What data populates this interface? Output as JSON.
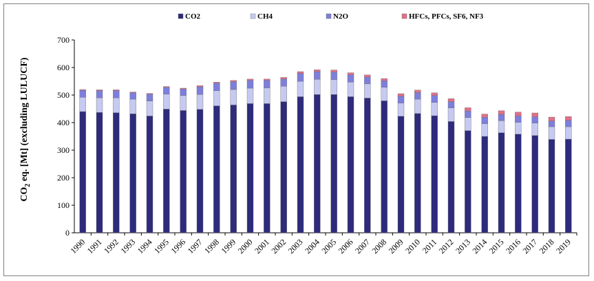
{
  "chart_data": {
    "type": "bar",
    "stacked": true,
    "title": "",
    "xlabel": "",
    "ylabel": "CO₂ eq. [Mt] (excluding LULUCF)",
    "ylabel_parts": {
      "pre": "CO",
      "sub": "2",
      "post": " eq. [Mt] (excluding LULUCF)"
    },
    "ylim": [
      0,
      700
    ],
    "yticks": [
      0,
      100,
      200,
      300,
      400,
      500,
      600,
      700
    ],
    "grid": false,
    "legend_position": "top",
    "categories": [
      "1990",
      "1991",
      "1992",
      "1993",
      "1994",
      "1995",
      "1996",
      "1997",
      "1998",
      "1999",
      "2000",
      "2001",
      "2002",
      "2003",
      "2004",
      "2005",
      "2006",
      "2007",
      "2008",
      "2009",
      "2010",
      "2011",
      "2012",
      "2013",
      "2014",
      "2015",
      "2016",
      "2017",
      "2018",
      "2019"
    ],
    "series": [
      {
        "name": "CO2",
        "color": "#2e2b7d",
        "values": [
          440,
          437,
          436,
          432,
          424,
          449,
          444,
          448,
          461,
          464,
          469,
          469,
          476,
          494,
          502,
          502,
          494,
          489,
          479,
          423,
          433,
          425,
          404,
          371,
          350,
          363,
          358,
          353,
          339,
          340
        ]
      },
      {
        "name": "CH4",
        "color": "#c6c9f0",
        "values": [
          52,
          53,
          54,
          53,
          54,
          54,
          54,
          54,
          55,
          56,
          56,
          57,
          56,
          56,
          55,
          54,
          53,
          52,
          49,
          48,
          52,
          48,
          49,
          47,
          46,
          44,
          43,
          45,
          46,
          45
        ]
      },
      {
        "name": "N2O",
        "color": "#7c7fdb",
        "values": [
          25,
          26,
          26,
          23,
          25,
          25,
          24,
          28,
          27,
          28,
          28,
          27,
          26,
          28,
          28,
          27,
          26,
          24,
          24,
          25,
          24,
          25,
          23,
          24,
          23,
          23,
          23,
          23,
          21,
          23
        ]
      },
      {
        "name": "HFCs, PFCs, SF6, NF3",
        "color": "#e0708a",
        "values": [
          3,
          3,
          3,
          3,
          3,
          3,
          3,
          4,
          4,
          5,
          5,
          5,
          6,
          7,
          7,
          8,
          8,
          8,
          8,
          9,
          9,
          10,
          11,
          12,
          12,
          13,
          14,
          14,
          14,
          14
        ]
      }
    ]
  }
}
